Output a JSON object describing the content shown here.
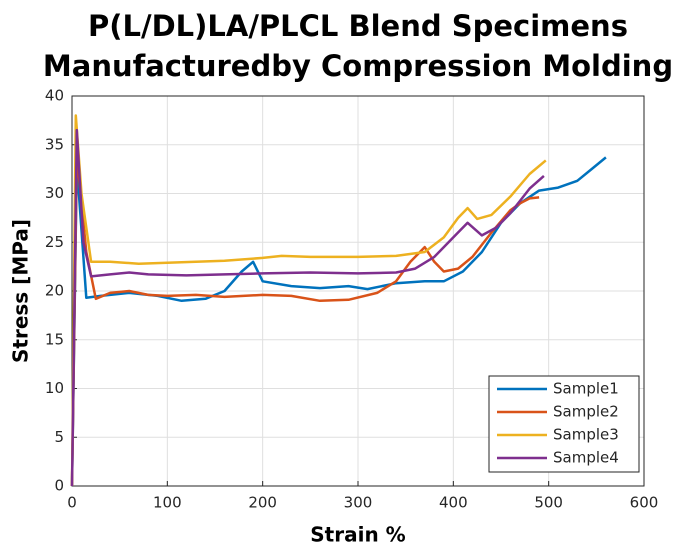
{
  "chart_data": {
    "type": "line",
    "title": [
      "P(L/DL)LA/PLCL Blend Specimens",
      "Manufacturedby Compression Molding"
    ],
    "xlabel": "Strain %",
    "ylabel": "Stress [MPa]",
    "xlim": [
      0,
      600
    ],
    "xticks": [
      0,
      100,
      200,
      300,
      400,
      500,
      600
    ],
    "ylim": [
      0,
      40
    ],
    "yticks": [
      0,
      5,
      10,
      15,
      20,
      25,
      30,
      35,
      40
    ],
    "grid": true,
    "legend": "lower right",
    "series": [
      {
        "name": "Sample1",
        "color": "#0072BD",
        "x": [
          0,
          5,
          15,
          30,
          60,
          90,
          115,
          140,
          160,
          178,
          190,
          200,
          230,
          260,
          290,
          310,
          340,
          370,
          390,
          410,
          430,
          450,
          470,
          490,
          510,
          530,
          545,
          560
        ],
        "values": [
          0,
          33,
          19.3,
          19.5,
          19.8,
          19.5,
          19,
          19.2,
          20,
          22,
          23,
          21,
          20.5,
          20.3,
          20.5,
          20.2,
          20.8,
          21,
          21,
          22,
          24,
          27,
          29,
          30.3,
          30.6,
          31.3,
          32.5,
          33.7
        ]
      },
      {
        "name": "Sample2",
        "color": "#D95319",
        "x": [
          0,
          5,
          15,
          25,
          40,
          60,
          80,
          100,
          130,
          160,
          200,
          230,
          260,
          290,
          320,
          340,
          355,
          370,
          380,
          390,
          405,
          420,
          440,
          460,
          470,
          480,
          490
        ],
        "values": [
          0,
          34,
          24,
          19.2,
          19.8,
          20,
          19.6,
          19.5,
          19.6,
          19.4,
          19.6,
          19.5,
          19,
          19.1,
          19.8,
          21,
          23,
          24.5,
          23,
          22,
          22.3,
          23.5,
          26,
          28.3,
          29,
          29.5,
          29.6
        ]
      },
      {
        "name": "Sample3",
        "color": "#EDB120",
        "x": [
          0,
          4,
          10,
          20,
          40,
          70,
          100,
          130,
          160,
          200,
          220,
          250,
          300,
          340,
          370,
          390,
          405,
          415,
          425,
          440,
          460,
          480,
          497
        ],
        "values": [
          0,
          38,
          30,
          23,
          23,
          22.8,
          22.9,
          23,
          23.1,
          23.4,
          23.6,
          23.5,
          23.5,
          23.6,
          24,
          25.5,
          27.5,
          28.5,
          27.4,
          27.8,
          29.7,
          32,
          33.4
        ]
      },
      {
        "name": "Sample4",
        "color": "#7E2F8E",
        "x": [
          0,
          5,
          12,
          20,
          40,
          60,
          80,
          120,
          160,
          200,
          250,
          300,
          340,
          360,
          380,
          400,
          415,
          430,
          445,
          460,
          480,
          495
        ],
        "values": [
          0,
          36.5,
          25,
          21.5,
          21.7,
          21.9,
          21.7,
          21.6,
          21.7,
          21.8,
          21.9,
          21.8,
          21.9,
          22.3,
          23.5,
          25.5,
          27,
          25.7,
          26.5,
          28,
          30.5,
          31.8
        ]
      }
    ]
  }
}
